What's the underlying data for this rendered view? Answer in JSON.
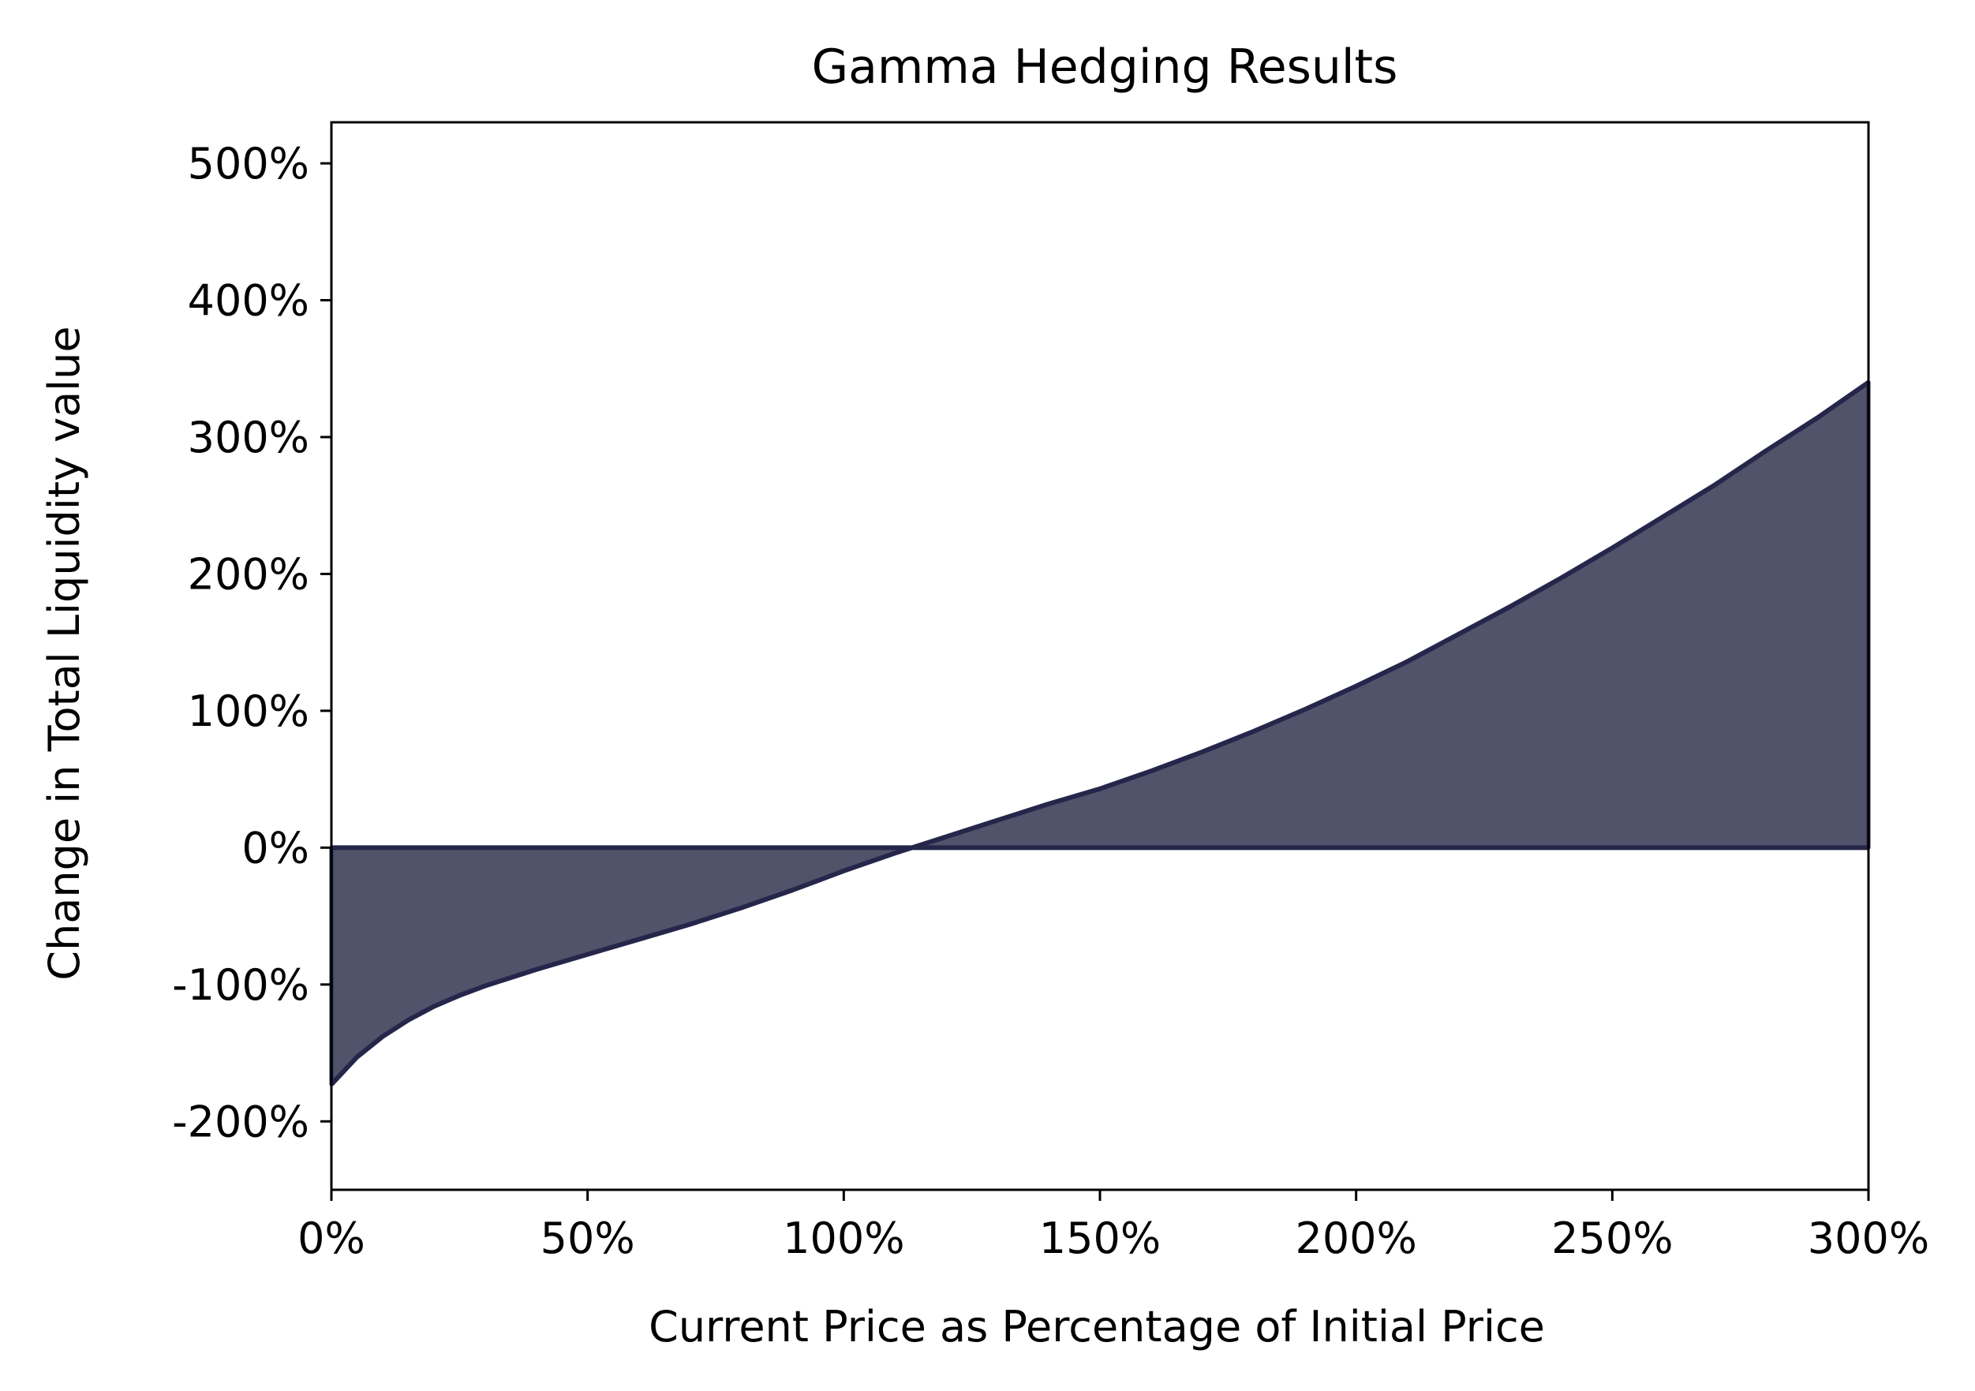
{
  "chart_data": {
    "type": "area",
    "title": "Gamma Hedging Results",
    "xlabel": "Current Price as Percentage of Initial Price",
    "ylabel": "Change in Total Liquidity value",
    "xlim": [
      0,
      300
    ],
    "ylim": [
      -250,
      530
    ],
    "x_ticks": [
      0,
      50,
      100,
      150,
      200,
      250,
      300
    ],
    "x_tick_labels": [
      "0%",
      "50%",
      "100%",
      "150%",
      "200%",
      "250%",
      "300%"
    ],
    "y_ticks": [
      -200,
      -100,
      0,
      100,
      200,
      300,
      400,
      500
    ],
    "y_tick_labels": [
      "-200%",
      "-100%",
      "0%",
      "100%",
      "200%",
      "300%",
      "400%",
      "500%"
    ],
    "grid": false,
    "fill_between": {
      "baseline": 0
    },
    "colors": {
      "fill": "#51536b",
      "line": "#25264a"
    },
    "series": [
      {
        "x": [
          0,
          5,
          10,
          15,
          20,
          25,
          30,
          40,
          50,
          60,
          70,
          80,
          90,
          100,
          110,
          120,
          130,
          140,
          150,
          160,
          170,
          180,
          190,
          200,
          210,
          220,
          230,
          240,
          250,
          260,
          270,
          280,
          290,
          300
        ],
        "values": [
          -173,
          -153,
          -138,
          -126,
          -116,
          -108,
          -101,
          -89,
          -78,
          -67,
          -56,
          -44,
          -31,
          -17,
          -4,
          8,
          20,
          32,
          43,
          56,
          70,
          85,
          101,
          118,
          136,
          156,
          176,
          197,
          219,
          242,
          265,
          290,
          314,
          340
        ]
      }
    ]
  }
}
